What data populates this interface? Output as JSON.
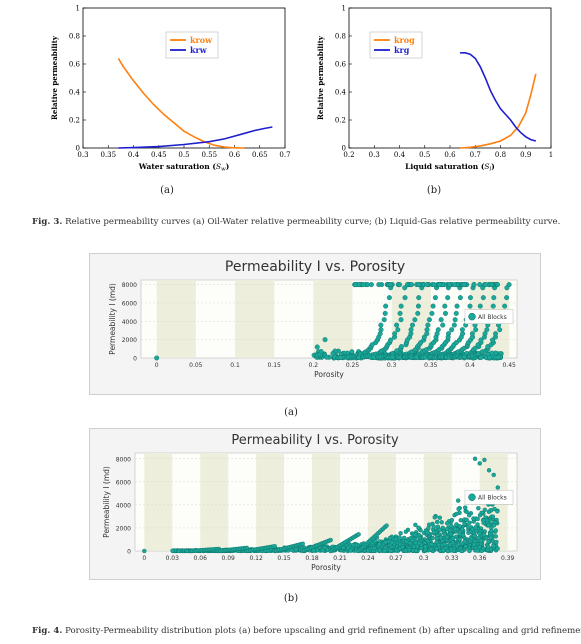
{
  "figure3": {
    "caption_prefix": "Fig. 3.",
    "caption_text": " Relative permeability curves (a) Oil-Water relative permeability curve; (b) Liquid-Gas relative permeability curve.",
    "sub_a": "(a)",
    "sub_b": "(b)"
  },
  "figure4": {
    "caption_prefix": "Fig. 4.",
    "caption_text": " Porosity-Permeability distribution plots (a) before upscaling and grid refinement (b) after upscaling and grid refinement.",
    "sub_a": "(a)",
    "sub_b": "(b)"
  },
  "chart_data": [
    {
      "type": "line",
      "ylabel": "Relative permeability",
      "xlabel_text": "Water saturation (",
      "xlabel_var": "S",
      "xlabel_sub": "w",
      "xlabel_end": ")",
      "xlim": [
        0.3,
        0.7
      ],
      "ylim": [
        0,
        1
      ],
      "xticks": [
        "0.3",
        "0.35",
        "0.4",
        "0.45",
        "0.5",
        "0.55",
        "0.6",
        "0.65",
        "0.7"
      ],
      "yticks": [
        "0",
        "0.2",
        "0.4",
        "0.6",
        "0.8",
        "1"
      ],
      "legend_position": "top-center",
      "series": [
        {
          "name": "krow",
          "color": "#ff7f0e",
          "x": [
            0.37,
            0.38,
            0.4,
            0.42,
            0.44,
            0.46,
            0.48,
            0.5,
            0.52,
            0.54,
            0.56,
            0.58,
            0.6,
            0.62
          ],
          "y": [
            0.64,
            0.58,
            0.48,
            0.39,
            0.31,
            0.24,
            0.18,
            0.12,
            0.08,
            0.045,
            0.02,
            0.007,
            0.001,
            0.0
          ]
        },
        {
          "name": "krw",
          "color": "#1f1fd0",
          "x": [
            0.37,
            0.4,
            0.45,
            0.5,
            0.55,
            0.58,
            0.6,
            0.62,
            0.64,
            0.66,
            0.675
          ],
          "y": [
            0.0,
            0.003,
            0.01,
            0.025,
            0.045,
            0.065,
            0.085,
            0.105,
            0.125,
            0.14,
            0.15
          ]
        }
      ]
    },
    {
      "type": "line",
      "ylabel": "Relative permeability",
      "xlabel_text": "Liquid saturation (",
      "xlabel_var": "S",
      "xlabel_sub": "l",
      "xlabel_end": ")",
      "xlim": [
        0.2,
        1.0
      ],
      "ylim": [
        0,
        1
      ],
      "xticks": [
        "0.2",
        "0.3",
        "0.4",
        "0.5",
        "0.6",
        "0.7",
        "0.8",
        "0.9",
        "1"
      ],
      "yticks": [
        "0",
        "0.2",
        "0.4",
        "0.6",
        "0.8",
        "1"
      ],
      "legend_position": "top-left",
      "series": [
        {
          "name": "krog",
          "color": "#ff7f0e",
          "x": [
            0.64,
            0.68,
            0.72,
            0.76,
            0.8,
            0.84,
            0.87,
            0.9,
            0.92,
            0.94
          ],
          "y": [
            0.0,
            0.005,
            0.015,
            0.03,
            0.05,
            0.09,
            0.15,
            0.25,
            0.38,
            0.53
          ]
        },
        {
          "name": "krg",
          "color": "#1f1fd0",
          "x": [
            0.64,
            0.66,
            0.68,
            0.7,
            0.72,
            0.74,
            0.76,
            0.78,
            0.8,
            0.82,
            0.84,
            0.86,
            0.88,
            0.9,
            0.92,
            0.94
          ],
          "y": [
            0.68,
            0.68,
            0.67,
            0.64,
            0.58,
            0.5,
            0.41,
            0.34,
            0.28,
            0.24,
            0.2,
            0.15,
            0.11,
            0.08,
            0.06,
            0.05
          ]
        }
      ]
    },
    {
      "type": "scatter",
      "title": "Permeability I vs. Porosity",
      "xlabel": "Porosity",
      "ylabel": "Permeability I  (md)",
      "xlim": [
        -0.02,
        0.46
      ],
      "ylim": [
        0,
        8500
      ],
      "xticks": [
        "0",
        "0.05",
        "0.1",
        "0.15",
        "0.2",
        "0.25",
        "0.3",
        "0.35",
        "0.4",
        "0.45"
      ],
      "xtick_values": [
        0,
        0.05,
        0.1,
        0.15,
        0.2,
        0.25,
        0.3,
        0.35,
        0.4,
        0.45
      ],
      "yticks": [
        "0",
        "2000",
        "4000",
        "6000",
        "8000"
      ],
      "ytick_values": [
        0,
        2000,
        4000,
        6000,
        8000
      ],
      "legend": "All Blocks",
      "color": "#1aa89a",
      "series": [
        {
          "name": "All Blocks",
          "x": [
            0.0,
            0.2,
            0.21,
            0.22,
            0.25,
            0.26,
            0.27,
            0.28,
            0.29,
            0.3,
            0.31,
            0.32,
            0.33,
            0.34,
            0.35,
            0.36,
            0.37,
            0.38,
            0.39,
            0.4,
            0.41,
            0.42,
            0.43,
            0.44
          ],
          "y": [
            0,
            1200,
            400,
            2000,
            8000,
            5000,
            1500,
            8000,
            7000,
            6500,
            3000,
            8000,
            4000,
            8000,
            5000,
            8000,
            7000,
            8000,
            3500,
            8000,
            5500,
            2500,
            1500,
            8000
          ]
        }
      ]
    },
    {
      "type": "scatter",
      "title": "Permeability I vs. Porosity",
      "xlabel": "Porosity",
      "ylabel": "Permeability I  (md)",
      "xlim": [
        -0.01,
        0.4
      ],
      "ylim": [
        0,
        8500
      ],
      "xticks": [
        "0",
        "0.03",
        "0.06",
        "0.09",
        "0.12",
        "0.15",
        "0.18",
        "0.21",
        "0.24",
        "0.27",
        "0.3",
        "0.33",
        "0.36",
        "0.39"
      ],
      "xtick_values": [
        0,
        0.03,
        0.06,
        0.09,
        0.12,
        0.15,
        0.18,
        0.21,
        0.24,
        0.27,
        0.3,
        0.33,
        0.36,
        0.39
      ],
      "yticks": [
        "0",
        "2000",
        "4000",
        "6000",
        "8000"
      ],
      "ytick_values": [
        0,
        2000,
        4000,
        6000,
        8000
      ],
      "legend": "All Blocks",
      "color": "#1aa89a",
      "series": [
        {
          "name": "All Blocks",
          "x": [
            0.0,
            0.03,
            0.06,
            0.09,
            0.12,
            0.15,
            0.18,
            0.21,
            0.24,
            0.27,
            0.3,
            0.33,
            0.35,
            0.36,
            0.37
          ],
          "y": [
            0,
            100,
            250,
            400,
            600,
            900,
            1300,
            1800,
            2300,
            3000,
            3800,
            5200,
            6500,
            7800,
            8000
          ]
        }
      ]
    }
  ]
}
